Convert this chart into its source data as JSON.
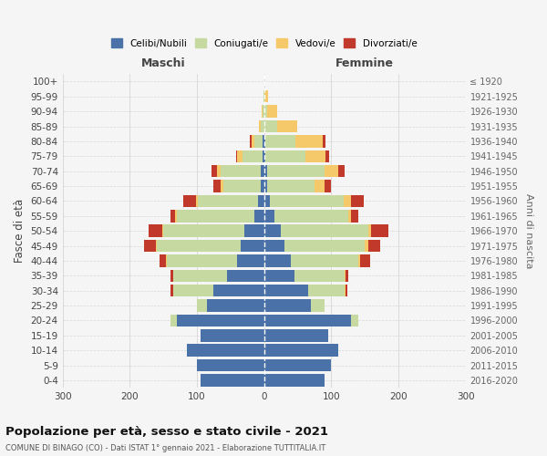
{
  "age_groups": [
    "0-4",
    "5-9",
    "10-14",
    "15-19",
    "20-24",
    "25-29",
    "30-34",
    "35-39",
    "40-44",
    "45-49",
    "50-54",
    "55-59",
    "60-64",
    "65-69",
    "70-74",
    "75-79",
    "80-84",
    "85-89",
    "90-94",
    "95-99",
    "100+"
  ],
  "birth_years": [
    "2016-2020",
    "2011-2015",
    "2006-2010",
    "2001-2005",
    "1996-2000",
    "1991-1995",
    "1986-1990",
    "1981-1985",
    "1976-1980",
    "1971-1975",
    "1966-1970",
    "1961-1965",
    "1956-1960",
    "1951-1955",
    "1946-1950",
    "1941-1945",
    "1936-1940",
    "1931-1935",
    "1926-1930",
    "1921-1925",
    "≤ 1920"
  ],
  "maschi": {
    "celibi": [
      95,
      100,
      115,
      95,
      130,
      85,
      75,
      55,
      40,
      35,
      30,
      15,
      9,
      5,
      5,
      2,
      2,
      0,
      0,
      0,
      0
    ],
    "coniugati": [
      0,
      0,
      0,
      0,
      10,
      15,
      60,
      80,
      105,
      125,
      120,
      115,
      90,
      55,
      60,
      30,
      12,
      5,
      2,
      1,
      0
    ],
    "vedovi": [
      0,
      0,
      0,
      0,
      0,
      0,
      0,
      0,
      1,
      1,
      2,
      2,
      2,
      5,
      5,
      8,
      5,
      2,
      1,
      0,
      0
    ],
    "divorziati": [
      0,
      0,
      0,
      0,
      0,
      0,
      5,
      5,
      10,
      18,
      20,
      8,
      20,
      10,
      8,
      2,
      2,
      0,
      0,
      0,
      0
    ]
  },
  "femmine": {
    "nubili": [
      90,
      100,
      110,
      95,
      130,
      70,
      65,
      45,
      40,
      30,
      25,
      15,
      9,
      5,
      5,
      2,
      2,
      0,
      0,
      0,
      0
    ],
    "coniugate": [
      0,
      0,
      0,
      0,
      10,
      20,
      55,
      75,
      100,
      120,
      130,
      110,
      110,
      70,
      85,
      60,
      45,
      20,
      5,
      1,
      0
    ],
    "vedove": [
      0,
      0,
      0,
      0,
      0,
      0,
      1,
      1,
      3,
      5,
      5,
      5,
      10,
      15,
      20,
      30,
      40,
      30,
      15,
      5,
      0
    ],
    "divorziate": [
      0,
      0,
      0,
      0,
      0,
      0,
      3,
      5,
      15,
      18,
      25,
      10,
      20,
      10,
      10,
      5,
      5,
      0,
      0,
      0,
      0
    ]
  },
  "colors": {
    "celibi": "#4a72a8",
    "coniugati": "#c5d9a0",
    "vedovi": "#f5c96a",
    "divorziati": "#c0392b"
  },
  "legend_labels": [
    "Celibi/Nubili",
    "Coniugati/e",
    "Vedovi/e",
    "Divorziati/e"
  ],
  "title": "Popolazione per età, sesso e stato civile - 2021",
  "subtitle": "COMUNE DI BINAGO (CO) - Dati ISTAT 1° gennaio 2021 - Elaborazione TUTTITALIA.IT",
  "xlabel_left": "Maschi",
  "xlabel_right": "Femmine",
  "ylabel_left": "Fasce di età",
  "ylabel_right": "Anni di nascita",
  "xlim": 300,
  "background_color": "#f5f5f5",
  "grid_color": "#cccccc"
}
